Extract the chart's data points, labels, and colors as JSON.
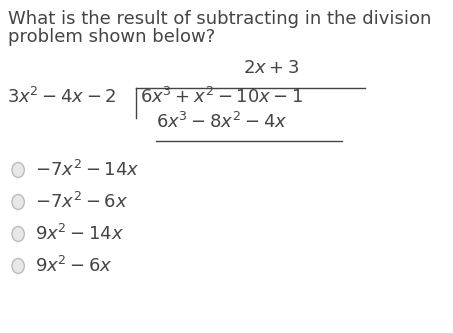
{
  "question_line1": "What is the result of subtracting in the division",
  "question_line2": "problem shown below?",
  "bg_color": "#ffffff",
  "text_color": "#444444",
  "circle_color": "#bbbbbb",
  "q_fontsize": 13.0,
  "m_fontsize": 13.0,
  "c_fontsize": 13.0,
  "choices_plain": [
    "-7x² - 14x",
    "-7x² - 6x",
    "9x² - 14x",
    "9x² - 6x"
  ],
  "choices_latex": [
    "$-7x^2 - 14x$",
    "$-7x^2 - 6x$",
    "$9x^2 - 14x$",
    "$9x^2 - 6x$"
  ]
}
